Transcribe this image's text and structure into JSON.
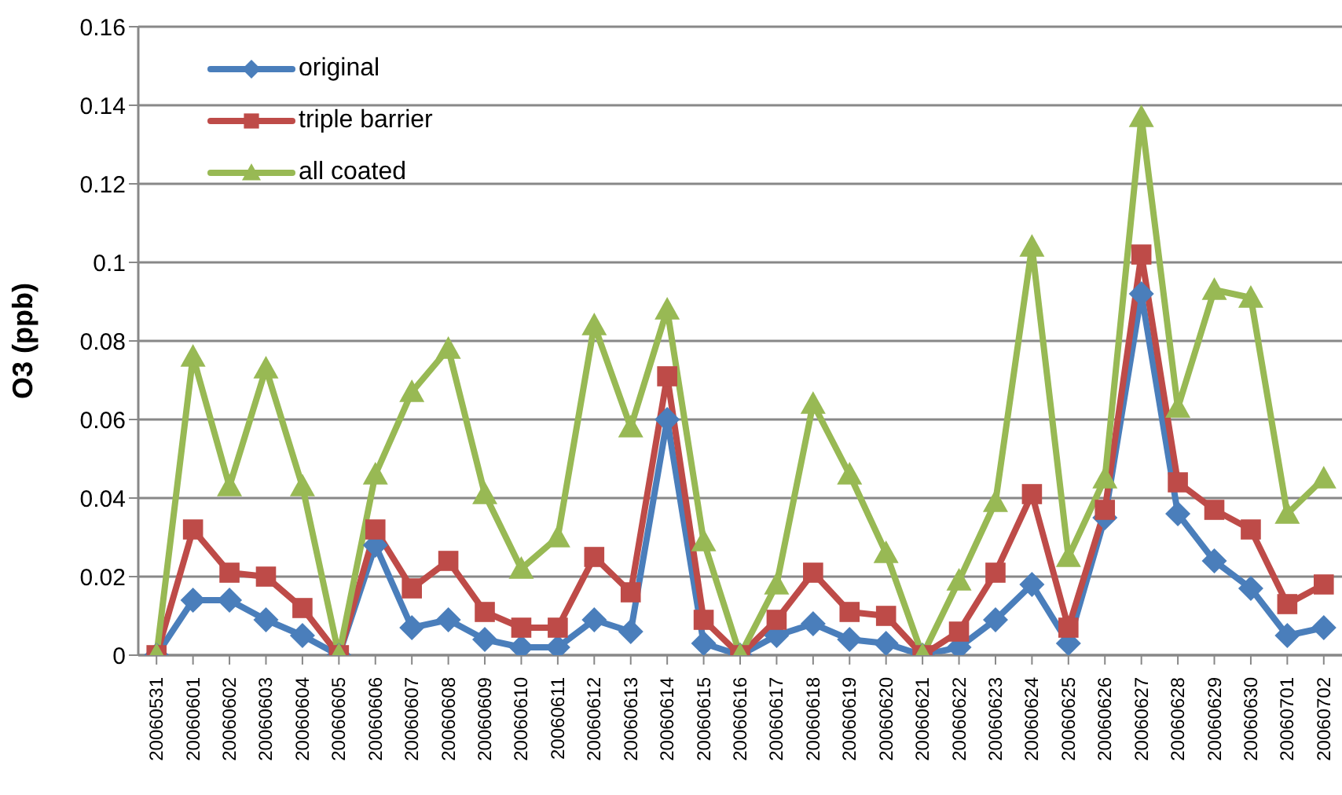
{
  "chart_data": {
    "type": "line",
    "ylabel": "O3 (ppb)",
    "categories": [
      "20060531",
      "20060601",
      "20060602",
      "20060603",
      "20060604",
      "20060605",
      "20060606",
      "20060607",
      "20060608",
      "20060609",
      "20060610",
      "20060611",
      "20060612",
      "20060613",
      "20060614",
      "20060615",
      "20060616",
      "20060617",
      "20060618",
      "20060619",
      "20060620",
      "20060621",
      "20060622",
      "20060623",
      "20060624",
      "20060625",
      "20060626",
      "20060627",
      "20060628",
      "20060629",
      "20060630",
      "20060701",
      "20060702"
    ],
    "series": [
      {
        "name": "original",
        "color": "#4a7ebb",
        "marker": "diamond",
        "values": [
          0,
          0.014,
          0.014,
          0.009,
          0.005,
          0,
          0.028,
          0.007,
          0.009,
          0.004,
          0.002,
          0.002,
          0.009,
          0.006,
          0.06,
          0.003,
          0,
          0.005,
          0.008,
          0.004,
          0.003,
          0,
          0.002,
          0.009,
          0.018,
          0.003,
          0.035,
          0.092,
          0.036,
          0.024,
          0.017,
          0.005,
          0.007
        ]
      },
      {
        "name": "triple barrier",
        "color": "#be4b48",
        "marker": "square",
        "values": [
          0,
          0.032,
          0.021,
          0.02,
          0.012,
          0,
          0.032,
          0.017,
          0.024,
          0.011,
          0.007,
          0.007,
          0.025,
          0.016,
          0.071,
          0.009,
          0,
          0.009,
          0.021,
          0.011,
          0.01,
          0,
          0.006,
          0.021,
          0.041,
          0.007,
          0.037,
          0.102,
          0.044,
          0.037,
          0.032,
          0.013,
          0.018
        ]
      },
      {
        "name": "all coated",
        "color": "#98b954",
        "marker": "triangle",
        "values": [
          0,
          0.076,
          0.043,
          0.073,
          0.043,
          0,
          0.046,
          0.067,
          0.078,
          0.041,
          0.022,
          0.03,
          0.084,
          0.058,
          0.088,
          0.029,
          0,
          0.018,
          0.064,
          0.046,
          0.026,
          0,
          0.019,
          0.039,
          0.104,
          0.025,
          0.045,
          0.137,
          0.063,
          0.093,
          0.091,
          0.036,
          0.045
        ]
      }
    ],
    "ylim": [
      0,
      0.16
    ],
    "yticks": [
      0,
      0.02,
      0.04,
      0.06,
      0.08,
      0.1,
      0.12,
      0.14,
      0.16
    ],
    "grid": "y",
    "legend": "top left"
  }
}
